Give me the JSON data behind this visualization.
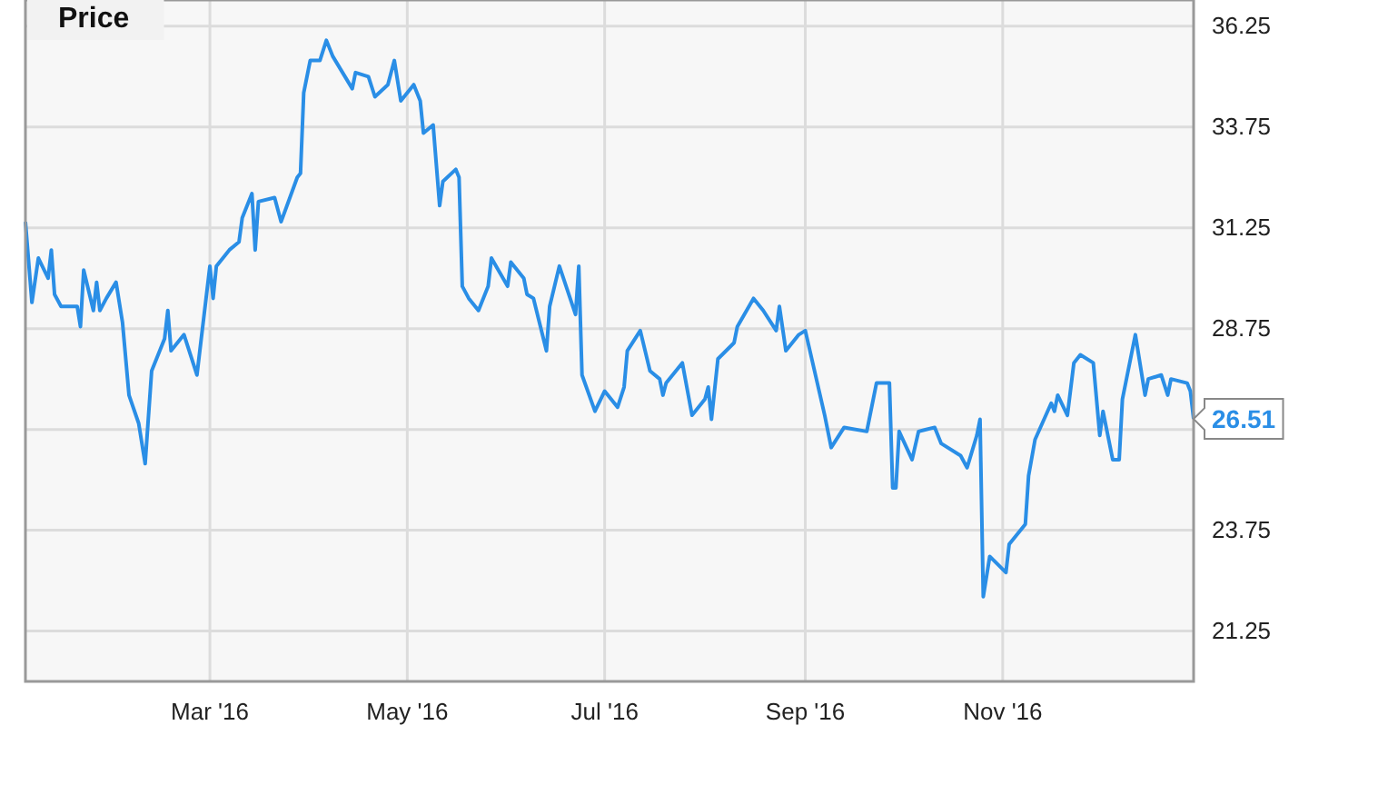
{
  "chart_data": {
    "type": "line",
    "title": "Price",
    "grid": true,
    "marker": "none",
    "line_style": "solid",
    "xlim": [
      "2016-01-04",
      "2016-12-30"
    ],
    "xticks": [
      {
        "value": "2016-03-01",
        "label": "Mar '16"
      },
      {
        "value": "2016-05-01",
        "label": "May '16"
      },
      {
        "value": "2016-07-01",
        "label": "Jul '16"
      },
      {
        "value": "2016-09-01",
        "label": "Sep '16"
      },
      {
        "value": "2016-11-01",
        "label": "Nov '16"
      }
    ],
    "ylim": [
      20,
      36.9
    ],
    "yticks": [
      21.25,
      23.75,
      {
        "value": 26.25,
        "label": null
      },
      28.75,
      31.25,
      33.75,
      36.25
    ],
    "annotations": [
      {
        "text": "26.51",
        "x": "2016-12-30",
        "y": 26.51
      }
    ],
    "x": [
      "2016-01-04",
      "2016-01-06",
      "2016-01-08",
      "2016-01-11",
      "2016-01-12",
      "2016-01-13",
      "2016-01-15",
      "2016-01-20",
      "2016-01-21",
      "2016-01-22",
      "2016-01-25",
      "2016-01-26",
      "2016-01-27",
      "2016-01-29",
      "2016-02-01",
      "2016-02-03",
      "2016-02-05",
      "2016-02-08",
      "2016-02-10",
      "2016-02-12",
      "2016-02-16",
      "2016-02-17",
      "2016-02-18",
      "2016-02-22",
      "2016-02-26",
      "2016-03-01",
      "2016-03-02",
      "2016-03-03",
      "2016-03-07",
      "2016-03-10",
      "2016-03-11",
      "2016-03-14",
      "2016-03-15",
      "2016-03-16",
      "2016-03-21",
      "2016-03-23",
      "2016-03-28",
      "2016-03-29",
      "2016-03-30",
      "2016-04-01",
      "2016-04-04",
      "2016-04-06",
      "2016-04-08",
      "2016-04-14",
      "2016-04-15",
      "2016-04-19",
      "2016-04-21",
      "2016-04-25",
      "2016-04-27",
      "2016-04-29",
      "2016-05-03",
      "2016-05-05",
      "2016-05-06",
      "2016-05-09",
      "2016-05-11",
      "2016-05-12",
      "2016-05-16",
      "2016-05-17",
      "2016-05-18",
      "2016-05-20",
      "2016-05-23",
      "2016-05-26",
      "2016-05-27",
      "2016-06-01",
      "2016-06-02",
      "2016-06-06",
      "2016-06-07",
      "2016-06-09",
      "2016-06-13",
      "2016-06-14",
      "2016-06-17",
      "2016-06-22",
      "2016-06-23",
      "2016-06-24",
      "2016-06-28",
      "2016-07-01",
      "2016-07-05",
      "2016-07-07",
      "2016-07-08",
      "2016-07-12",
      "2016-07-15",
      "2016-07-18",
      "2016-07-19",
      "2016-07-20",
      "2016-07-25",
      "2016-07-28",
      "2016-08-01",
      "2016-08-02",
      "2016-08-03",
      "2016-08-05",
      "2016-08-10",
      "2016-08-11",
      "2016-08-16",
      "2016-08-19",
      "2016-08-23",
      "2016-08-24",
      "2016-08-26",
      "2016-08-30",
      "2016-09-01",
      "2016-09-07",
      "2016-09-09",
      "2016-09-13",
      "2016-09-20",
      "2016-09-23",
      "2016-09-27",
      "2016-09-28",
      "2016-09-29",
      "2016-09-30",
      "2016-10-04",
      "2016-10-06",
      "2016-10-11",
      "2016-10-13",
      "2016-10-19",
      "2016-10-21",
      "2016-10-24",
      "2016-10-25",
      "2016-10-26",
      "2016-10-28",
      "2016-11-02",
      "2016-11-03",
      "2016-11-08",
      "2016-11-09",
      "2016-11-11",
      "2016-11-16",
      "2016-11-17",
      "2016-11-18",
      "2016-11-21",
      "2016-11-23",
      "2016-11-25",
      "2016-11-29",
      "2016-12-01",
      "2016-12-02",
      "2016-12-05",
      "2016-12-07",
      "2016-12-08",
      "2016-12-12",
      "2016-12-15",
      "2016-12-16",
      "2016-12-20",
      "2016-12-22",
      "2016-12-23",
      "2016-12-28",
      "2016-12-29",
      "2016-12-30"
    ],
    "series": [
      {
        "color": "#2a8ee6",
        "values": [
          31.4,
          29.4,
          30.5,
          30.0,
          30.7,
          29.6,
          29.3,
          29.3,
          28.8,
          30.2,
          29.2,
          29.9,
          29.2,
          29.5,
          29.9,
          28.9,
          27.1,
          26.4,
          25.4,
          27.7,
          28.5,
          29.2,
          28.2,
          28.6,
          27.6,
          30.3,
          29.5,
          30.3,
          30.7,
          30.9,
          31.5,
          32.1,
          30.7,
          31.9,
          32.0,
          31.4,
          32.5,
          32.6,
          34.6,
          35.4,
          35.4,
          35.9,
          35.5,
          34.7,
          35.1,
          35.0,
          34.5,
          34.8,
          35.4,
          34.4,
          34.8,
          34.4,
          33.6,
          33.8,
          31.8,
          32.4,
          32.7,
          32.5,
          29.8,
          29.5,
          29.2,
          29.8,
          30.5,
          29.8,
          30.4,
          30.0,
          29.6,
          29.5,
          28.2,
          29.3,
          30.3,
          29.1,
          30.3,
          27.6,
          26.7,
          27.2,
          26.8,
          27.3,
          28.2,
          28.7,
          27.7,
          27.5,
          27.1,
          27.4,
          27.9,
          26.6,
          27.0,
          27.3,
          26.5,
          28.0,
          28.4,
          28.8,
          29.5,
          29.2,
          28.7,
          29.3,
          28.2,
          28.6,
          28.7,
          26.6,
          25.8,
          26.3,
          26.2,
          27.4,
          27.4,
          24.8,
          24.8,
          26.2,
          25.5,
          26.2,
          26.3,
          25.9,
          25.6,
          25.3,
          26.1,
          26.5,
          22.1,
          23.1,
          22.7,
          23.4,
          23.9,
          25.1,
          26.0,
          26.9,
          26.7,
          27.1,
          26.6,
          27.9,
          28.1,
          27.9,
          26.1,
          26.7,
          25.5,
          25.5,
          27.0,
          28.6,
          27.1,
          27.5,
          27.6,
          27.1,
          27.5,
          27.4,
          27.2,
          26.51
        ]
      }
    ]
  }
}
